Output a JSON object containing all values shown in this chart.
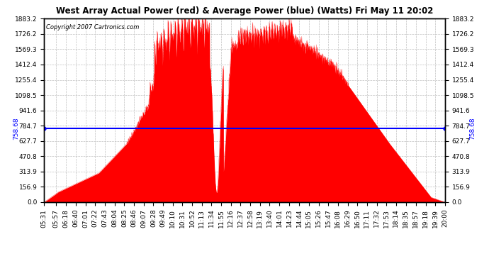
{
  "title": "West Array Actual Power (red) & Average Power (blue) (Watts) Fri May 11 20:02",
  "copyright": "Copyright 2007 Cartronics.com",
  "avg_power": 758.68,
  "y_max": 1883.2,
  "y_ticks": [
    0.0,
    156.9,
    313.9,
    470.8,
    627.7,
    784.7,
    941.6,
    1098.5,
    1255.4,
    1412.4,
    1569.3,
    1726.2,
    1883.2
  ],
  "background_color": "#ffffff",
  "fill_color": "#ff0000",
  "line_color": "#0000ff",
  "grid_color": "#c0c0c0",
  "x_labels": [
    "05:31",
    "05:57",
    "06:18",
    "06:40",
    "07:01",
    "07:22",
    "07:43",
    "08:04",
    "08:25",
    "08:46",
    "09:07",
    "09:28",
    "09:49",
    "10:10",
    "10:31",
    "10:52",
    "11:13",
    "11:34",
    "11:55",
    "12:16",
    "12:37",
    "12:58",
    "13:19",
    "13:40",
    "14:01",
    "14:23",
    "14:44",
    "15:05",
    "15:26",
    "15:47",
    "16:08",
    "16:29",
    "16:50",
    "17:11",
    "17:32",
    "17:53",
    "18:14",
    "18:35",
    "18:57",
    "19:18",
    "19:39",
    "20:00"
  ]
}
